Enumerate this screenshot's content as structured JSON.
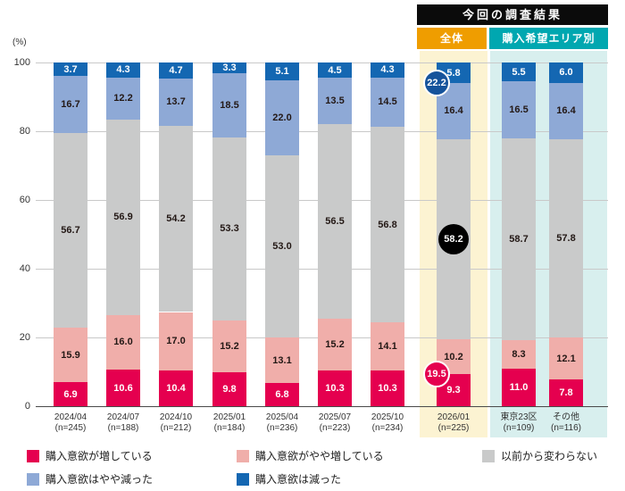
{
  "header": {
    "title": "今回の調査結果",
    "title_bg": "#0b0b0b",
    "groups": [
      {
        "label": "全体",
        "bg": "#ef9d00",
        "highlight": "#fcf3d2"
      },
      {
        "label": "購入希望エリア別",
        "bg": "#00a7b0",
        "highlight": "#d8efee"
      }
    ]
  },
  "chart_data": {
    "type": "bar",
    "stacked": true,
    "title": "",
    "unit_label": "(%)",
    "ylim": [
      0,
      100
    ],
    "yticks": [
      0,
      20,
      40,
      60,
      80,
      100
    ],
    "grid": true,
    "legend_position": "bottom",
    "categories": [
      {
        "period": "2024/04",
        "n": "(n=245)"
      },
      {
        "period": "2024/07",
        "n": "(n=188)"
      },
      {
        "period": "2024/10",
        "n": "(n=212)"
      },
      {
        "period": "2025/01",
        "n": "(n=184)"
      },
      {
        "period": "2025/04",
        "n": "(n=236)"
      },
      {
        "period": "2025/07",
        "n": "(n=223)"
      },
      {
        "period": "2025/10",
        "n": "(n=234)"
      },
      {
        "period": "2026/01",
        "n": "(n=225)"
      },
      {
        "period": "東京23区",
        "n": "(n=109)"
      },
      {
        "period": "その他",
        "n": "(n=116)"
      }
    ],
    "series": [
      {
        "name": "購入意欲が増している",
        "color": "#e5004f",
        "label_color": "#ffffff",
        "values": [
          6.9,
          10.6,
          10.4,
          9.8,
          6.8,
          10.3,
          10.3,
          9.3,
          11.0,
          7.8
        ]
      },
      {
        "name": "購入意欲がやや増している",
        "color": "#f0aeaa",
        "label_color": "#231815",
        "values": [
          15.9,
          16.0,
          17.0,
          15.2,
          13.1,
          15.2,
          14.1,
          10.2,
          8.3,
          12.1
        ]
      },
      {
        "name": "以前から変わらない",
        "color": "#c9caca",
        "label_color": "#231815",
        "values": [
          56.7,
          56.9,
          54.2,
          53.3,
          53.0,
          56.5,
          56.8,
          58.2,
          58.7,
          57.8
        ]
      },
      {
        "name": "購入意欲はやや減った",
        "color": "#8ea9d6",
        "label_color": "#231815",
        "values": [
          16.7,
          12.2,
          13.7,
          18.5,
          22.0,
          13.5,
          14.5,
          16.4,
          16.5,
          16.4
        ]
      },
      {
        "name": "購入意欲は減った",
        "color": "#1467b2",
        "label_color": "#ffffff",
        "values": [
          3.7,
          4.3,
          4.7,
          3.3,
          5.1,
          4.5,
          4.3,
          5.8,
          5.5,
          6.0
        ]
      }
    ],
    "circled_labels": [
      [
        7,
        2
      ]
    ],
    "highlight_annotations": {
      "column_index": 7,
      "items": [
        {
          "label": "19.5",
          "pct_center": 9.3,
          "bg": "#e5004f",
          "align": "left",
          "large": false,
          "name": "increase-total-badge"
        },
        {
          "label": "58.2",
          "pct_center": 48.6,
          "bg": "#000000",
          "align": "center",
          "large": true,
          "name": "unchanged-total-badge"
        },
        {
          "label": "22.2",
          "pct_center": 94.1,
          "bg": "#15539b",
          "align": "left",
          "large": false,
          "name": "decrease-total-badge"
        }
      ]
    },
    "legend_layout": [
      [
        0,
        1,
        2
      ],
      [
        3,
        4
      ]
    ]
  }
}
